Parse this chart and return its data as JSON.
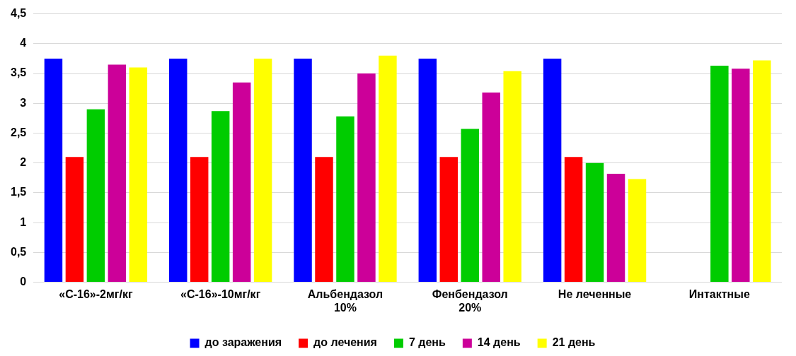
{
  "chart_data": {
    "type": "bar",
    "categories": [
      "«С-16»-2мг/кг",
      "«С-16»-10мг/кг",
      "Альбендазол\n10%",
      "Фенбендазол\n20%",
      "Не леченные",
      "Интактные"
    ],
    "series": [
      {
        "name": "до заражения",
        "color": "#0000ff",
        "values": [
          3.75,
          3.75,
          3.75,
          3.75,
          3.75,
          null
        ]
      },
      {
        "name": "до лечения",
        "color": "#ff0000",
        "values": [
          2.1,
          2.1,
          2.1,
          2.1,
          2.1,
          null
        ]
      },
      {
        "name": "7 день",
        "color": "#00cc00",
        "values": [
          2.9,
          2.87,
          2.78,
          2.57,
          2.0,
          3.63
        ]
      },
      {
        "name": "14 день",
        "color": "#cc0099",
        "values": [
          3.65,
          3.35,
          3.5,
          3.18,
          1.82,
          3.58
        ]
      },
      {
        "name": "21 день",
        "color": "#ffff00",
        "values": [
          3.6,
          3.75,
          3.8,
          3.54,
          1.73,
          3.72
        ]
      }
    ],
    "ylim": [
      0,
      4.5
    ],
    "yticks": [
      0,
      {
        "value": 0.5,
        "label": "0,5"
      },
      1,
      {
        "value": 1.5,
        "label": "1,5"
      },
      2,
      {
        "value": 2.5,
        "label": "2,5"
      },
      3,
      {
        "value": 3.5,
        "label": "3,5"
      },
      4,
      {
        "value": 4.5,
        "label": "4,5"
      }
    ],
    "grid": "y",
    "legend": "bottom"
  }
}
